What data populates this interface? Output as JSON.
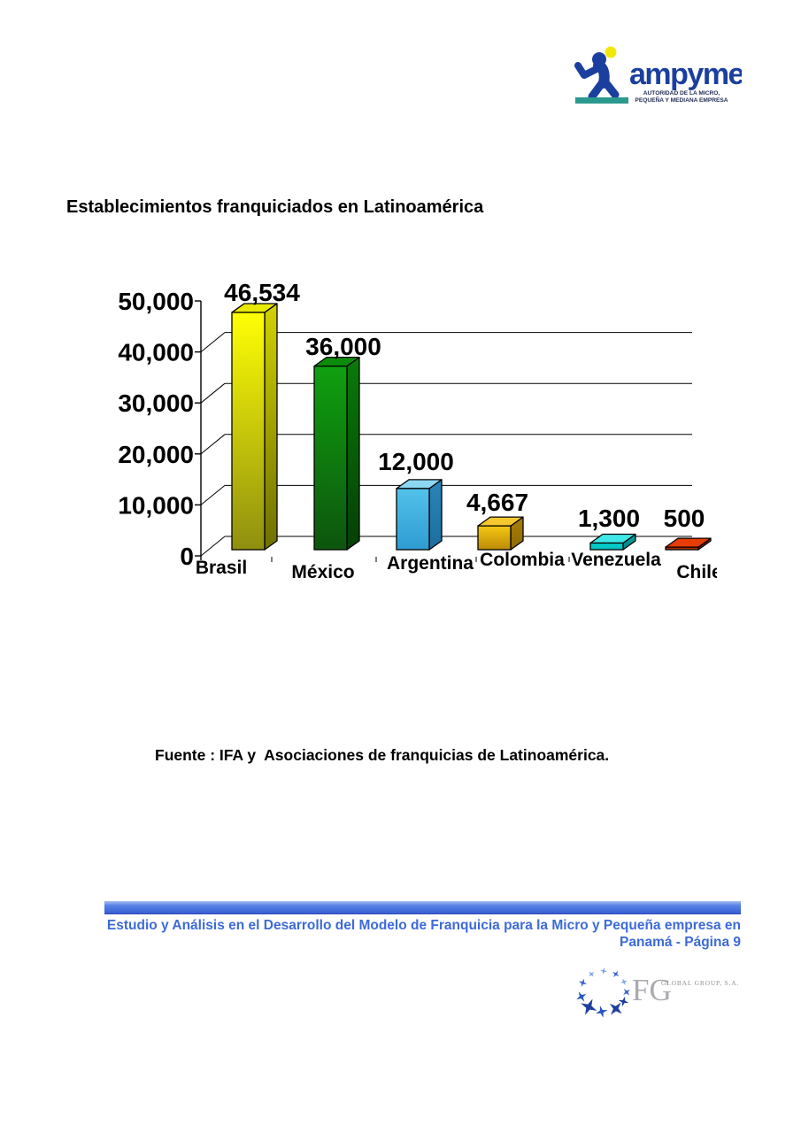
{
  "header_logo": {
    "brand": "ampyme",
    "tagline_line1": "AUTORIDAD DE LA MICRO,",
    "tagline_line2": "PEQUEÑA Y MEDIANA EMPRESA",
    "brand_color": "#1b3f9e",
    "accent_teal": "#2b9a8e",
    "accent_yellow": "#f2e70a"
  },
  "title": "Establecimientos franquiciados en Latinoamérica",
  "chart_data": {
    "type": "bar",
    "style": "3d",
    "title": "",
    "xlabel": "",
    "ylabel": "",
    "categories": [
      "Brasil",
      "México",
      "Argentina",
      "Colombia",
      "Venezuela",
      "Chile"
    ],
    "values": [
      46534,
      36000,
      12000,
      4667,
      1300,
      500
    ],
    "data_labels": [
      "46,534",
      "36,000",
      "12,000",
      "4,667",
      "1,300",
      "500"
    ],
    "ytick_values": [
      0,
      10000,
      20000,
      30000,
      40000,
      50000
    ],
    "ytick_labels": [
      "0",
      "10,000",
      "20,000",
      "30,000",
      "40,000",
      "50,000"
    ],
    "ylim": [
      0,
      50000
    ],
    "grid": true,
    "legend": "none",
    "bar_colors": [
      {
        "top": "#e9e900",
        "front_top": "#ffff05",
        "front_bottom": "#8f8f10",
        "side_top": "#d2d200",
        "side_bottom": "#6f6f00"
      },
      {
        "top": "#0c8c0c",
        "front_top": "#0fa00f",
        "front_bottom": "#0d550d",
        "side_top": "#0a7a0a",
        "side_bottom": "#053f05"
      },
      {
        "top": "#8cd8f2",
        "front_top": "#52c2ea",
        "front_bottom": "#2e9cd2",
        "side_top": "#2a84b8",
        "side_bottom": "#1c6f9f"
      },
      {
        "top": "#f6c830",
        "front_top": "#f4c812",
        "front_bottom": "#bd8a06",
        "side_top": "#a87e06",
        "side_bottom": "#8d6a04"
      },
      {
        "top": "#3fe8e8",
        "front_top": "#00d4d4",
        "front_bottom": "#00bcbc",
        "side_top": "#00a0a0",
        "side_bottom": "#008888"
      },
      {
        "top": "#e63c05",
        "front_top": "#c03000",
        "front_bottom": "#a82a00",
        "side_top": "#8a2200",
        "side_bottom": "#7a1e00"
      }
    ]
  },
  "source_note": "Fuente : IFA y  Asociaciones de franquicias de Latinoamérica.",
  "footer": {
    "line1": "Estudio y Análisis en el Desarrollo del Modelo de Franquicia para la Micro y Pequeña empresa en",
    "line2": "Panamá - Página 9",
    "text_color": "#3d6ad8"
  },
  "fg_logo": {
    "initials": "FG",
    "suffix": "GLOBAL GROUP, S.A.",
    "star_colors": [
      "#7aa4e8",
      "#3a66cc",
      "#1d3f9e",
      "#2a55c0"
    ]
  }
}
